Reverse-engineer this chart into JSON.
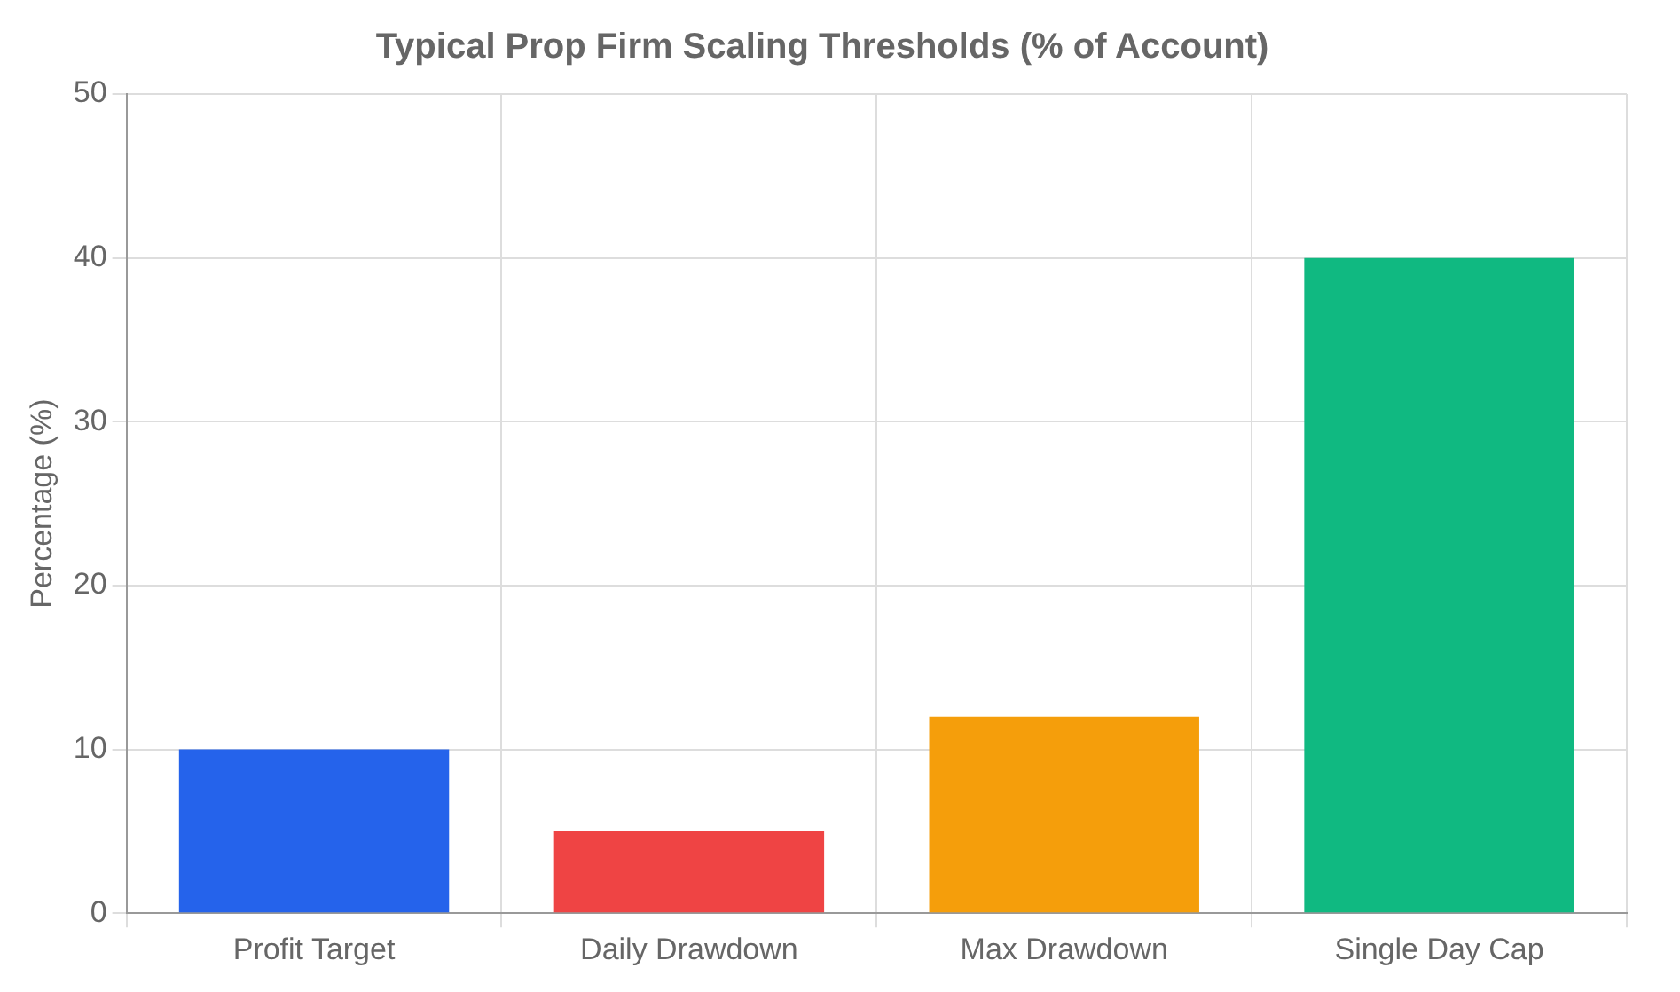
{
  "chart_data": {
    "type": "bar",
    "title": "Typical Prop Firm Scaling Thresholds (% of Account)",
    "ylabel": "Percentage (%)",
    "categories": [
      "Profit Target",
      "Daily Drawdown",
      "Max Drawdown",
      "Single Day Cap"
    ],
    "values": [
      10,
      5,
      12,
      40
    ],
    "colors": [
      "#2563eb",
      "#ef4444",
      "#f59e0b",
      "#10b981"
    ],
    "ylim": [
      0,
      50
    ],
    "yticks": [
      0,
      10,
      20,
      30,
      40,
      50
    ],
    "grid": true,
    "legend": false
  }
}
